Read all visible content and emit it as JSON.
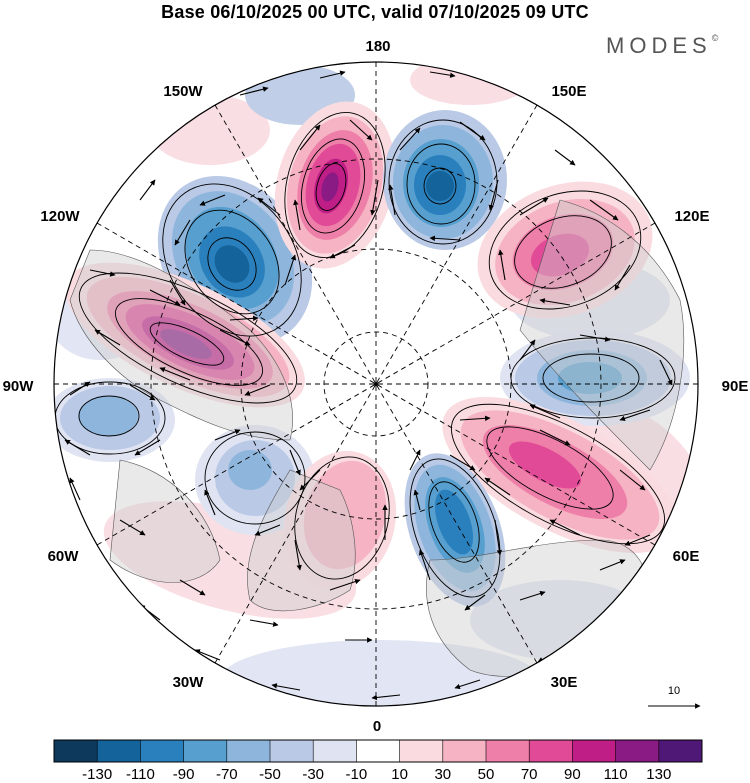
{
  "title": "Base 06/10/2025 00 UTC, valid 07/10/2025 09 UTC",
  "brand": "MODES",
  "brand_mark": "©",
  "map": {
    "projection": "north-polar-stereographic",
    "longitude_labels": [
      "180",
      "150E",
      "120E",
      "90E",
      "60E",
      "30E",
      "0",
      "30W",
      "60W",
      "90W",
      "120W",
      "150W"
    ],
    "vector_reference": "10"
  },
  "colorbar": {
    "tick_labels": [
      "-130",
      "-110",
      "-90",
      "-70",
      "-50",
      "-30",
      "-10",
      "10",
      "30",
      "50",
      "70",
      "90",
      "110",
      "130"
    ],
    "colors": [
      "#0d3a5c",
      "#14639b",
      "#2a80bd",
      "#569fcf",
      "#8eb6dc",
      "#b9c9e6",
      "#dfe3f2",
      "#ffffff",
      "#f9dbe0",
      "#f5b3c3",
      "#ee7fa8",
      "#e04a96",
      "#c01e87",
      "#8a1a84",
      "#4f1776"
    ]
  },
  "icons": {
    "north-pole-dot": "dot",
    "reference-arrow": "right-arrow"
  }
}
